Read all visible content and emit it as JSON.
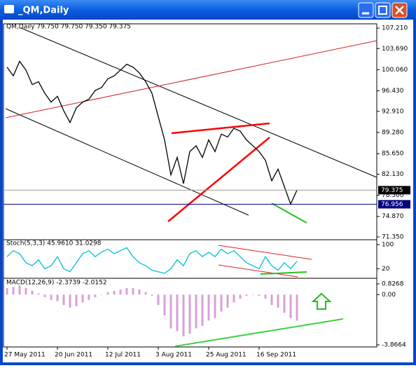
{
  "window": {
    "title": "_QM,Daily"
  },
  "chart_data": [
    {
      "type": "line",
      "title": "QM,Daily  79.750 79.750 79.350 79.375",
      "color": "#000000",
      "categories": [
        "27 May 2011",
        null,
        null,
        null,
        null,
        null,
        null,
        null,
        "20 Jun 2011",
        null,
        null,
        null,
        null,
        null,
        null,
        null,
        "12 Jul 2011",
        null,
        null,
        null,
        null,
        null,
        null,
        null,
        "3 Aug 2011",
        null,
        null,
        null,
        null,
        null,
        null,
        null,
        "25 Aug 2011",
        null,
        null,
        null,
        null,
        null,
        null,
        null,
        "16 Sep 2011",
        null,
        null,
        null,
        null,
        null,
        null
      ],
      "values": [
        100.5,
        99.0,
        101.5,
        100.0,
        97.5,
        98.0,
        96.0,
        94.5,
        95.5,
        93.0,
        91.0,
        93.5,
        94.5,
        95.0,
        96.5,
        97.0,
        98.5,
        99.0,
        100.0,
        101.0,
        100.5,
        99.5,
        98.0,
        96.0,
        92.0,
        88.0,
        82.0,
        85.0,
        80.5,
        86.0,
        87.0,
        85.0,
        88.0,
        86.0,
        89.0,
        88.5,
        90.0,
        89.5,
        88.0,
        87.0,
        86.0,
        84.5,
        81.0,
        83.0,
        80.0,
        77.0,
        79.375
      ],
      "ylim": [
        71.35,
        107.21
      ],
      "yticks": [
        {
          "value": 107.21,
          "label": "107.210"
        },
        {
          "value": 103.69,
          "label": "103.690"
        },
        {
          "value": 100.06,
          "label": "100.060"
        },
        {
          "value": 96.43,
          "label": "96.430"
        },
        {
          "value": 92.91,
          "label": "92.910"
        },
        {
          "value": 89.28,
          "label": "89.280"
        },
        {
          "value": 85.65,
          "label": "85.650"
        },
        {
          "value": 82.13,
          "label": "82.130"
        },
        {
          "value": 78.5,
          "label": "78.500"
        },
        {
          "value": 74.87,
          "label": "74.870"
        },
        {
          "value": 71.35,
          "label": "71.350"
        }
      ],
      "price_lines": [
        79.375,
        76.956
      ]
    },
    {
      "type": "line",
      "title": "Stoch(5,3,3)  45.9610 31.0298",
      "color": "#00bfd8",
      "values": [
        60,
        80,
        70,
        40,
        30,
        50,
        20,
        30,
        60,
        20,
        10,
        40,
        70,
        80,
        60,
        75,
        85,
        70,
        80,
        90,
        60,
        40,
        30,
        15,
        10,
        5,
        20,
        50,
        30,
        70,
        80,
        60,
        75,
        60,
        85,
        70,
        80,
        60,
        40,
        30,
        20,
        60,
        30,
        15,
        40,
        20,
        45
      ],
      "ylim": [
        0,
        100
      ],
      "yticks": [
        100,
        20
      ]
    },
    {
      "type": "bar",
      "title": "MACD(12,26,9)  -2.3739 -2.0152",
      "color": "#d8a0d8",
      "values": [
        0.5,
        0.6,
        0.7,
        0.5,
        0.3,
        0.1,
        -0.2,
        -0.4,
        -0.5,
        -0.8,
        -1.0,
        -0.9,
        -0.6,
        -0.4,
        -0.2,
        0.0,
        0.2,
        0.3,
        0.4,
        0.5,
        0.5,
        0.4,
        0.2,
        -0.1,
        -0.8,
        -1.6,
        -2.6,
        -2.8,
        -3.2,
        -3.0,
        -2.6,
        -2.4,
        -2.0,
        -1.8,
        -1.3,
        -1.0,
        -0.6,
        -0.3,
        -0.1,
        0.0,
        -0.1,
        -0.3,
        -0.8,
        -1.0,
        -1.4,
        -1.8,
        -2.0
      ],
      "ylim": [
        -3.8664,
        0.8268
      ],
      "yticks": [
        {
          "value": 0.8268,
          "label": "0.8268"
        },
        {
          "value": 0,
          "label": "0.00"
        },
        {
          "value": -3.8664,
          "label": "-3.8664"
        }
      ]
    }
  ]
}
